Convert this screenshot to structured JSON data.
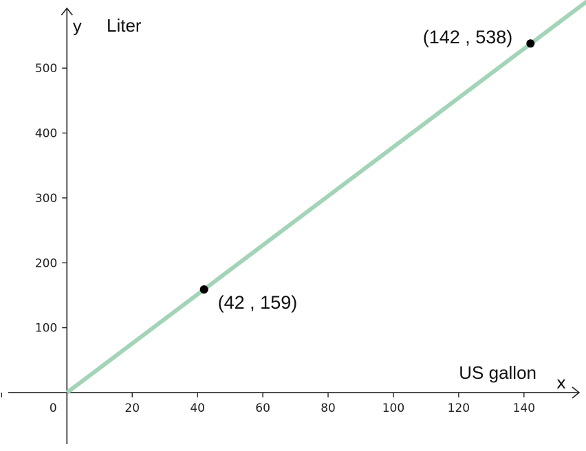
{
  "chart_data": {
    "type": "line",
    "xlabel": "US gallon",
    "ylabel": "Liter",
    "x_axis_letter": "x",
    "y_axis_letter": "y",
    "origin_label": "0",
    "xlim": [
      -20.5,
      159
    ],
    "ylim": [
      -90,
      605
    ],
    "x_ticks": [
      20,
      40,
      60,
      80,
      100,
      120,
      140
    ],
    "x_tick_labels": [
      "20",
      "40",
      "60",
      "80",
      "100",
      "120",
      "140"
    ],
    "y_ticks": [
      100,
      200,
      300,
      400,
      500
    ],
    "y_tick_labels": [
      "100",
      "200",
      "300",
      "400",
      "500"
    ],
    "grid": false,
    "line_color": "#a3d4b8",
    "series": [
      {
        "slope": 3.785,
        "intercept": 0,
        "x_range": [
          0,
          160
        ]
      }
    ],
    "points": [
      {
        "x": 42,
        "y": 159,
        "label": "(42 , 159)"
      },
      {
        "x": 142,
        "y": 538,
        "label": "(142 , 538)"
      }
    ]
  }
}
